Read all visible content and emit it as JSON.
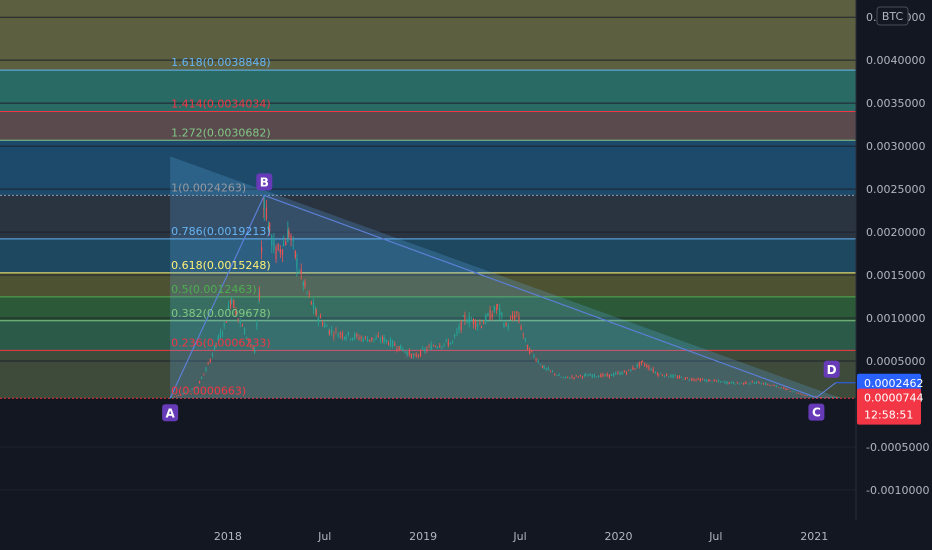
{
  "symbol_badge": "BTC",
  "colors": {
    "background": "#131722",
    "axis_text": "#b2b5be",
    "grid": "#1e222d",
    "candle_up": "#26a69a",
    "candle_down": "#ef5350",
    "point_label_bg": "#673ab7",
    "current_price_badge": "#f23645",
    "level_badge": "#2962ff"
  },
  "chart_data": {
    "type": "line",
    "title": "",
    "xlabel": "",
    "ylabel": "",
    "x_ticks": [
      "2018",
      "Jul",
      "2019",
      "Jul",
      "2020",
      "Jul",
      "2021"
    ],
    "y_ticks": [
      "0.0045000",
      "0.0040000",
      "0.0035000",
      "0.0030000",
      "0.0025000",
      "0.0020000",
      "0.0015000",
      "0.0010000",
      "0.0005000",
      "-0.0005000",
      "-0.0010000"
    ],
    "ylim": [
      -0.00135,
      0.0047
    ],
    "xlim": [
      "2016-11-01",
      "2021-03-20"
    ],
    "grid": true,
    "fib_levels": [
      {
        "ratio": 0,
        "value": 6.63e-05,
        "label": "0(0.0000663)",
        "color": "#f23645",
        "zone": "#7a1f2a"
      },
      {
        "ratio": 0.236,
        "value": 0.0006233,
        "label": "0.236(0.0006233)",
        "color": "#f23645",
        "zone": "#3e4a3a"
      },
      {
        "ratio": 0.382,
        "value": 0.0009678,
        "label": "0.382(0.0009678)",
        "color": "#81c784",
        "zone": "#2b5b48"
      },
      {
        "ratio": 0.5,
        "value": 0.0012463,
        "label": "0.5(0.0012463)",
        "color": "#4caf50",
        "zone": "#2c5a38"
      },
      {
        "ratio": 0.618,
        "value": 0.0015248,
        "label": "0.618(0.0015248)",
        "color": "#fff176",
        "zone": "#4d5232"
      },
      {
        "ratio": 0.786,
        "value": 0.0019213,
        "label": "0.786(0.0019213)",
        "color": "#64b5f6",
        "zone": "#1e4760"
      },
      {
        "ratio": 1,
        "value": 0.0024263,
        "label": "1(0.0024263)",
        "color": "#9598a1",
        "zone": "#2a3340"
      },
      {
        "ratio": 1.272,
        "value": 0.0030682,
        "label": "1.272(0.0030682)",
        "color": "#81c784",
        "zone": "#1d4a6a"
      },
      {
        "ratio": 1.414,
        "value": 0.0034034,
        "label": "1.414(0.0034034)",
        "color": "#f23645",
        "zone": "#5a4a4e"
      },
      {
        "ratio": 1.618,
        "value": 0.0038848,
        "label": "1.618(0.0038848)",
        "color": "#64b5f6",
        "zone": "#2a6a64"
      }
    ],
    "upper_zone": {
      "from": 0.0038848,
      "to": 0.0047,
      "color": "#5c6040"
    },
    "pattern_points": [
      {
        "name": "A",
        "date": "2017-09-15",
        "value": 6.63e-05
      },
      {
        "name": "B",
        "date": "2018-03-10",
        "value": 0.0024263
      },
      {
        "name": "C",
        "date": "2021-01-05",
        "value": 7.44e-05
      },
      {
        "name": "D",
        "date": "2021-02-10",
        "value": 0.0002462
      }
    ],
    "triangle": [
      {
        "date": "2017-09-15",
        "value": 0.00288
      },
      {
        "date": "2017-09-15",
        "value": 6.63e-05
      },
      {
        "date": "2021-02-20",
        "value": 6.63e-05
      }
    ],
    "price_series": [
      {
        "date": "2017-09-15",
        "value": 7e-05
      },
      {
        "date": "2017-10-10",
        "value": 0.00012
      },
      {
        "date": "2017-11-05",
        "value": 0.0002
      },
      {
        "date": "2017-11-25",
        "value": 0.00045
      },
      {
        "date": "2017-12-10",
        "value": 0.0007
      },
      {
        "date": "2017-12-25",
        "value": 0.0009
      },
      {
        "date": "2018-01-08",
        "value": 0.00125
      },
      {
        "date": "2018-01-20",
        "value": 0.001
      },
      {
        "date": "2018-02-05",
        "value": 0.0008
      },
      {
        "date": "2018-02-20",
        "value": 0.0006
      },
      {
        "date": "2018-03-01",
        "value": 0.0013
      },
      {
        "date": "2018-03-10",
        "value": 0.0024
      },
      {
        "date": "2018-03-20",
        "value": 0.002
      },
      {
        "date": "2018-04-01",
        "value": 0.00175
      },
      {
        "date": "2018-04-15",
        "value": 0.00185
      },
      {
        "date": "2018-04-25",
        "value": 0.002
      },
      {
        "date": "2018-05-10",
        "value": 0.00165
      },
      {
        "date": "2018-05-25",
        "value": 0.00135
      },
      {
        "date": "2018-06-15",
        "value": 0.00105
      },
      {
        "date": "2018-07-10",
        "value": 0.00085
      },
      {
        "date": "2018-08-10",
        "value": 0.0008
      },
      {
        "date": "2018-09-15",
        "value": 0.00076
      },
      {
        "date": "2018-10-20",
        "value": 0.00075
      },
      {
        "date": "2018-11-20",
        "value": 0.00065
      },
      {
        "date": "2018-12-15",
        "value": 0.00055
      },
      {
        "date": "2019-01-20",
        "value": 0.00068
      },
      {
        "date": "2019-02-25",
        "value": 0.00072
      },
      {
        "date": "2019-03-20",
        "value": 0.001
      },
      {
        "date": "2019-04-20",
        "value": 0.00093
      },
      {
        "date": "2019-05-20",
        "value": 0.00112
      },
      {
        "date": "2019-06-05",
        "value": 0.0009
      },
      {
        "date": "2019-06-25",
        "value": 0.00105
      },
      {
        "date": "2019-07-15",
        "value": 0.00065
      },
      {
        "date": "2019-08-15",
        "value": 0.00042
      },
      {
        "date": "2019-09-20",
        "value": 0.0003
      },
      {
        "date": "2019-11-01",
        "value": 0.00033
      },
      {
        "date": "2019-12-15",
        "value": 0.00033
      },
      {
        "date": "2020-01-20",
        "value": 0.00038
      },
      {
        "date": "2020-02-15",
        "value": 0.00048
      },
      {
        "date": "2020-03-15",
        "value": 0.00035
      },
      {
        "date": "2020-05-01",
        "value": 0.0003
      },
      {
        "date": "2020-06-20",
        "value": 0.00027
      },
      {
        "date": "2020-08-10",
        "value": 0.00024
      },
      {
        "date": "2020-09-20",
        "value": 0.00025
      },
      {
        "date": "2020-11-01",
        "value": 0.00019
      },
      {
        "date": "2020-12-15",
        "value": 0.0001
      },
      {
        "date": "2021-01-15",
        "value": 8e-05
      },
      {
        "date": "2021-02-20",
        "value": 7.4e-05
      }
    ],
    "current_price": {
      "value": 7.44e-05,
      "label": "0.0000744",
      "countdown": "12:58:51"
    },
    "level_badge": {
      "value": 0.0002462,
      "label": "0.0002462"
    }
  }
}
